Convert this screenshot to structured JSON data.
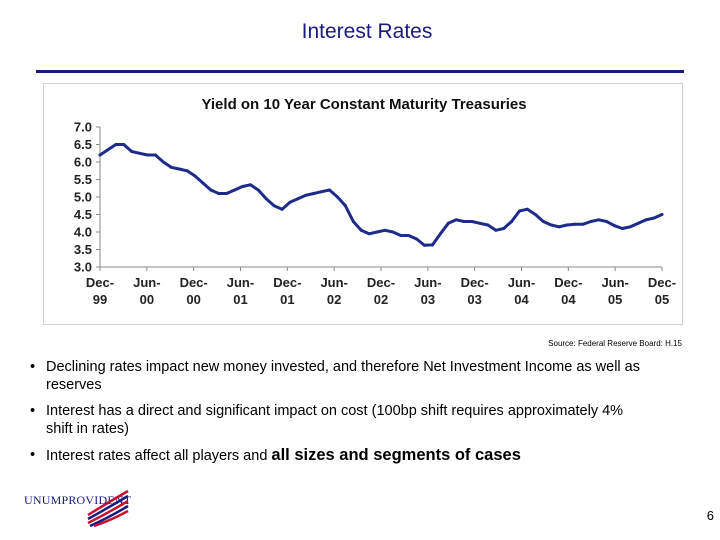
{
  "slide": {
    "title": "Interest Rates",
    "source": "Source: Federal Reserve Board: H.15",
    "page_number": "6",
    "logo_text": "UNUMPROVIDENT",
    "bullets": [
      {
        "text": "Declining rates impact new money invested, and therefore Net Investment Income as well as reserves"
      },
      {
        "text": "Interest has a direct and significant impact on cost (100bp shift requires approximately 4% shift in rates)"
      },
      {
        "text_normal": "Interest rates affect all players and ",
        "text_emphasis": "all sizes and segments of cases"
      }
    ]
  },
  "colors": {
    "title": "#1a1a80",
    "line": "#1f2a8a",
    "rule": "#1a1a80"
  },
  "chart_data": {
    "type": "line",
    "title": "Yield on 10 Year Constant Maturity Treasuries",
    "xlabel": "",
    "ylabel": "",
    "ylim": [
      3.0,
      7.0
    ],
    "yticks": [
      "7.0",
      "6.5",
      "6.0",
      "5.5",
      "5.0",
      "4.5",
      "4.0",
      "3.5",
      "3.0"
    ],
    "xticks": [
      {
        "top": "Dec-",
        "bottom": "99"
      },
      {
        "top": "Jun-",
        "bottom": "00"
      },
      {
        "top": "Dec-",
        "bottom": "00"
      },
      {
        "top": "Jun-",
        "bottom": "01"
      },
      {
        "top": "Dec-",
        "bottom": "01"
      },
      {
        "top": "Jun-",
        "bottom": "02"
      },
      {
        "top": "Dec-",
        "bottom": "02"
      },
      {
        "top": "Jun-",
        "bottom": "03"
      },
      {
        "top": "Dec-",
        "bottom": "03"
      },
      {
        "top": "Jun-",
        "bottom": "04"
      },
      {
        "top": "Dec-",
        "bottom": "04"
      },
      {
        "top": "Jun-",
        "bottom": "05"
      },
      {
        "top": "Dec-",
        "bottom": "05"
      }
    ],
    "grid": false,
    "series": [
      {
        "values": [
          6.2,
          6.35,
          6.5,
          6.5,
          6.3,
          6.25,
          6.2,
          6.2,
          6.0,
          5.85,
          5.8,
          5.75,
          5.6,
          5.4,
          5.2,
          5.1,
          5.1,
          5.2,
          5.3,
          5.35,
          5.2,
          4.95,
          4.75,
          4.65,
          4.85,
          4.95,
          5.05,
          5.1,
          5.15,
          5.2,
          5.0,
          4.75,
          4.3,
          4.05,
          3.95,
          4.0,
          4.05,
          4.0,
          3.9,
          3.9,
          3.8,
          3.62,
          3.63,
          3.95,
          4.25,
          4.35,
          4.3,
          4.3,
          4.25,
          4.2,
          4.05,
          4.1,
          4.3,
          4.6,
          4.65,
          4.5,
          4.3,
          4.2,
          4.15,
          4.2,
          4.22,
          4.22,
          4.3,
          4.35,
          4.3,
          4.18,
          4.1,
          4.15,
          4.25,
          4.35,
          4.4,
          4.5
        ]
      }
    ]
  }
}
